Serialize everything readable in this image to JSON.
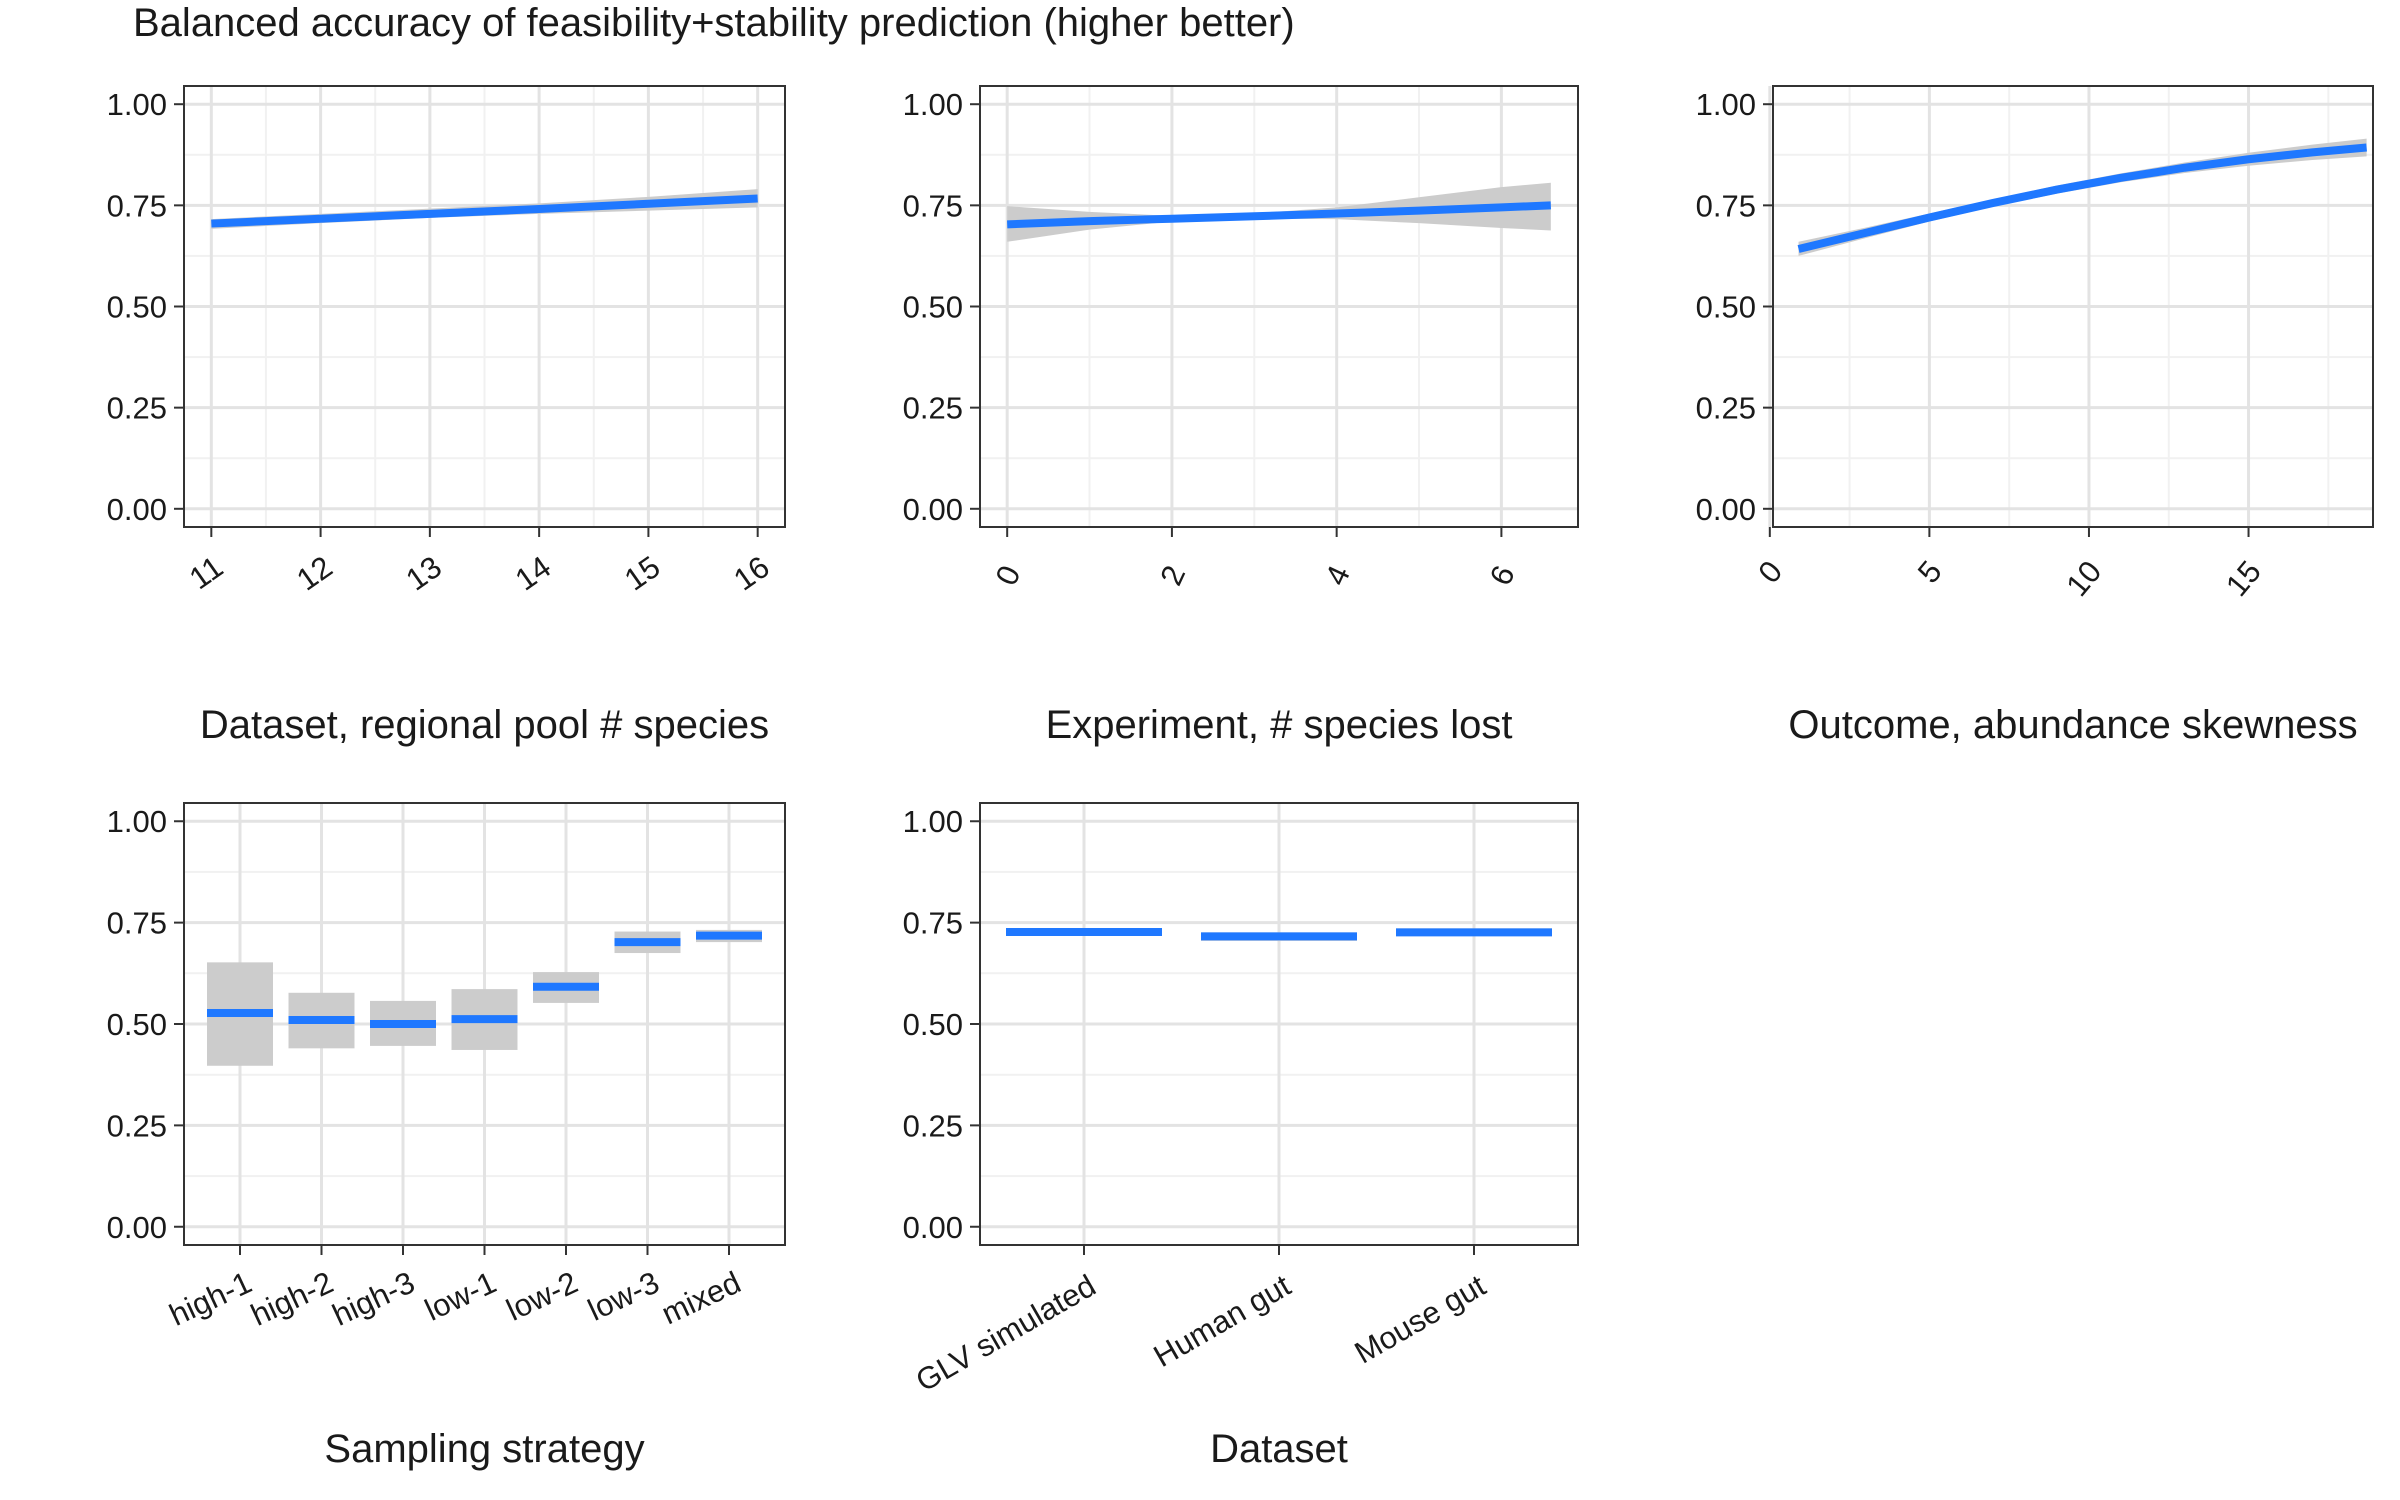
{
  "figure": {
    "title": "Balanced accuracy of feasibility+stability prediction (higher better)"
  },
  "colors": {
    "line": "#1f78ff",
    "ribbon": "#cccccc",
    "grid_major": "#e3e3e3",
    "grid_minor": "#f1f1f1",
    "panel_border": "#333333",
    "text": "#1a1a1a",
    "tick_text": "#4d4d4d"
  },
  "chart_data": [
    {
      "id": "pool",
      "type": "line",
      "xlabel": "Dataset, regional pool # species",
      "ylabel": "",
      "xlim": [
        10.75,
        16.25
      ],
      "ylim": [
        -0.045,
        1.045
      ],
      "x_ticks": [
        11,
        12,
        13,
        14,
        15,
        16
      ],
      "x_minor": [
        11.5,
        12.5,
        13.5,
        14.5,
        15.5
      ],
      "y_ticks": [
        0.0,
        0.25,
        0.5,
        0.75,
        1.0
      ],
      "y_tick_labels": [
        "0.00",
        "0.25",
        "0.50",
        "0.75",
        "1.00"
      ],
      "tick_label_rotation": -35,
      "series": [
        {
          "x": [
            11,
            12,
            13,
            14,
            15,
            16
          ],
          "y": [
            0.705,
            0.717,
            0.729,
            0.741,
            0.754,
            0.767
          ],
          "lo": [
            0.692,
            0.706,
            0.719,
            0.729,
            0.737,
            0.745
          ],
          "hi": [
            0.716,
            0.729,
            0.742,
            0.755,
            0.771,
            0.79
          ]
        }
      ]
    },
    {
      "id": "lost",
      "type": "line",
      "xlabel": "Experiment, # species lost",
      "ylabel": "",
      "xlim": [
        -0.33,
        6.93
      ],
      "ylim": [
        -0.045,
        1.045
      ],
      "x_ticks": [
        0,
        2,
        4,
        6
      ],
      "x_minor": [
        1,
        3,
        5
      ],
      "y_ticks": [
        0.0,
        0.25,
        0.5,
        0.75,
        1.0
      ],
      "y_tick_labels": [
        "0.00",
        "0.25",
        "0.50",
        "0.75",
        "1.00"
      ],
      "tick_label_rotation": -65,
      "series": [
        {
          "x": [
            0,
            1,
            2,
            3,
            4,
            5,
            6,
            6.6
          ],
          "y": [
            0.703,
            0.711,
            0.717,
            0.723,
            0.73,
            0.737,
            0.745,
            0.75
          ],
          "lo": [
            0.66,
            0.69,
            0.71,
            0.717,
            0.716,
            0.706,
            0.694,
            0.688
          ],
          "hi": [
            0.748,
            0.734,
            0.724,
            0.73,
            0.745,
            0.77,
            0.795,
            0.806
          ]
        }
      ]
    },
    {
      "id": "skew",
      "type": "line",
      "xlabel": "Outcome, abundance skewness",
      "ylabel": "",
      "xlim": [
        0.1,
        18.9
      ],
      "ylim": [
        -0.045,
        1.045
      ],
      "x_ticks": [
        0,
        5,
        10,
        15
      ],
      "x_minor": [
        2.5,
        7.5,
        12.5,
        17.5
      ],
      "y_ticks": [
        0.0,
        0.25,
        0.5,
        0.75,
        1.0
      ],
      "y_tick_labels": [
        "0.00",
        "0.25",
        "0.50",
        "0.75",
        "1.00"
      ],
      "tick_label_rotation": -50,
      "series": [
        {
          "x": [
            0.9,
            3,
            5,
            7,
            9,
            11,
            13,
            15,
            17,
            18.7
          ],
          "y": [
            0.642,
            0.682,
            0.72,
            0.756,
            0.789,
            0.818,
            0.843,
            0.864,
            0.881,
            0.893
          ],
          "lo": [
            0.625,
            0.669,
            0.71,
            0.747,
            0.779,
            0.807,
            0.83,
            0.848,
            0.862,
            0.871
          ],
          "hi": [
            0.66,
            0.695,
            0.73,
            0.765,
            0.799,
            0.829,
            0.856,
            0.88,
            0.9,
            0.915
          ]
        }
      ]
    },
    {
      "id": "sampling",
      "type": "categorical",
      "xlabel": "Sampling strategy",
      "ylabel": "",
      "categories": [
        "high-1",
        "high-2",
        "high-3",
        "low-1",
        "low-2",
        "low-3",
        "mixed"
      ],
      "values": [
        0.527,
        0.51,
        0.5,
        0.512,
        0.592,
        0.702,
        0.718
      ],
      "lower": [
        0.397,
        0.44,
        0.446,
        0.436,
        0.552,
        0.675,
        0.702
      ],
      "upper": [
        0.652,
        0.577,
        0.557,
        0.586,
        0.628,
        0.728,
        0.732
      ],
      "ylim": [
        -0.045,
        1.045
      ],
      "y_ticks": [
        0.0,
        0.25,
        0.5,
        0.75,
        1.0
      ],
      "y_tick_labels": [
        "0.00",
        "0.25",
        "0.50",
        "0.75",
        "1.00"
      ],
      "tick_label_rotation": -25
    },
    {
      "id": "dataset",
      "type": "categorical",
      "xlabel": "Dataset",
      "ylabel": "",
      "categories": [
        "GLV simulated",
        "Human gut",
        "Mouse gut"
      ],
      "values": [
        0.727,
        0.716,
        0.726
      ],
      "lower": [
        0.719,
        0.705,
        0.718
      ],
      "upper": [
        0.736,
        0.726,
        0.736
      ],
      "ylim": [
        -0.045,
        1.045
      ],
      "y_ticks": [
        0.0,
        0.25,
        0.5,
        0.75,
        1.0
      ],
      "y_tick_labels": [
        "0.00",
        "0.25",
        "0.50",
        "0.75",
        "1.00"
      ],
      "tick_label_rotation": -30
    }
  ]
}
